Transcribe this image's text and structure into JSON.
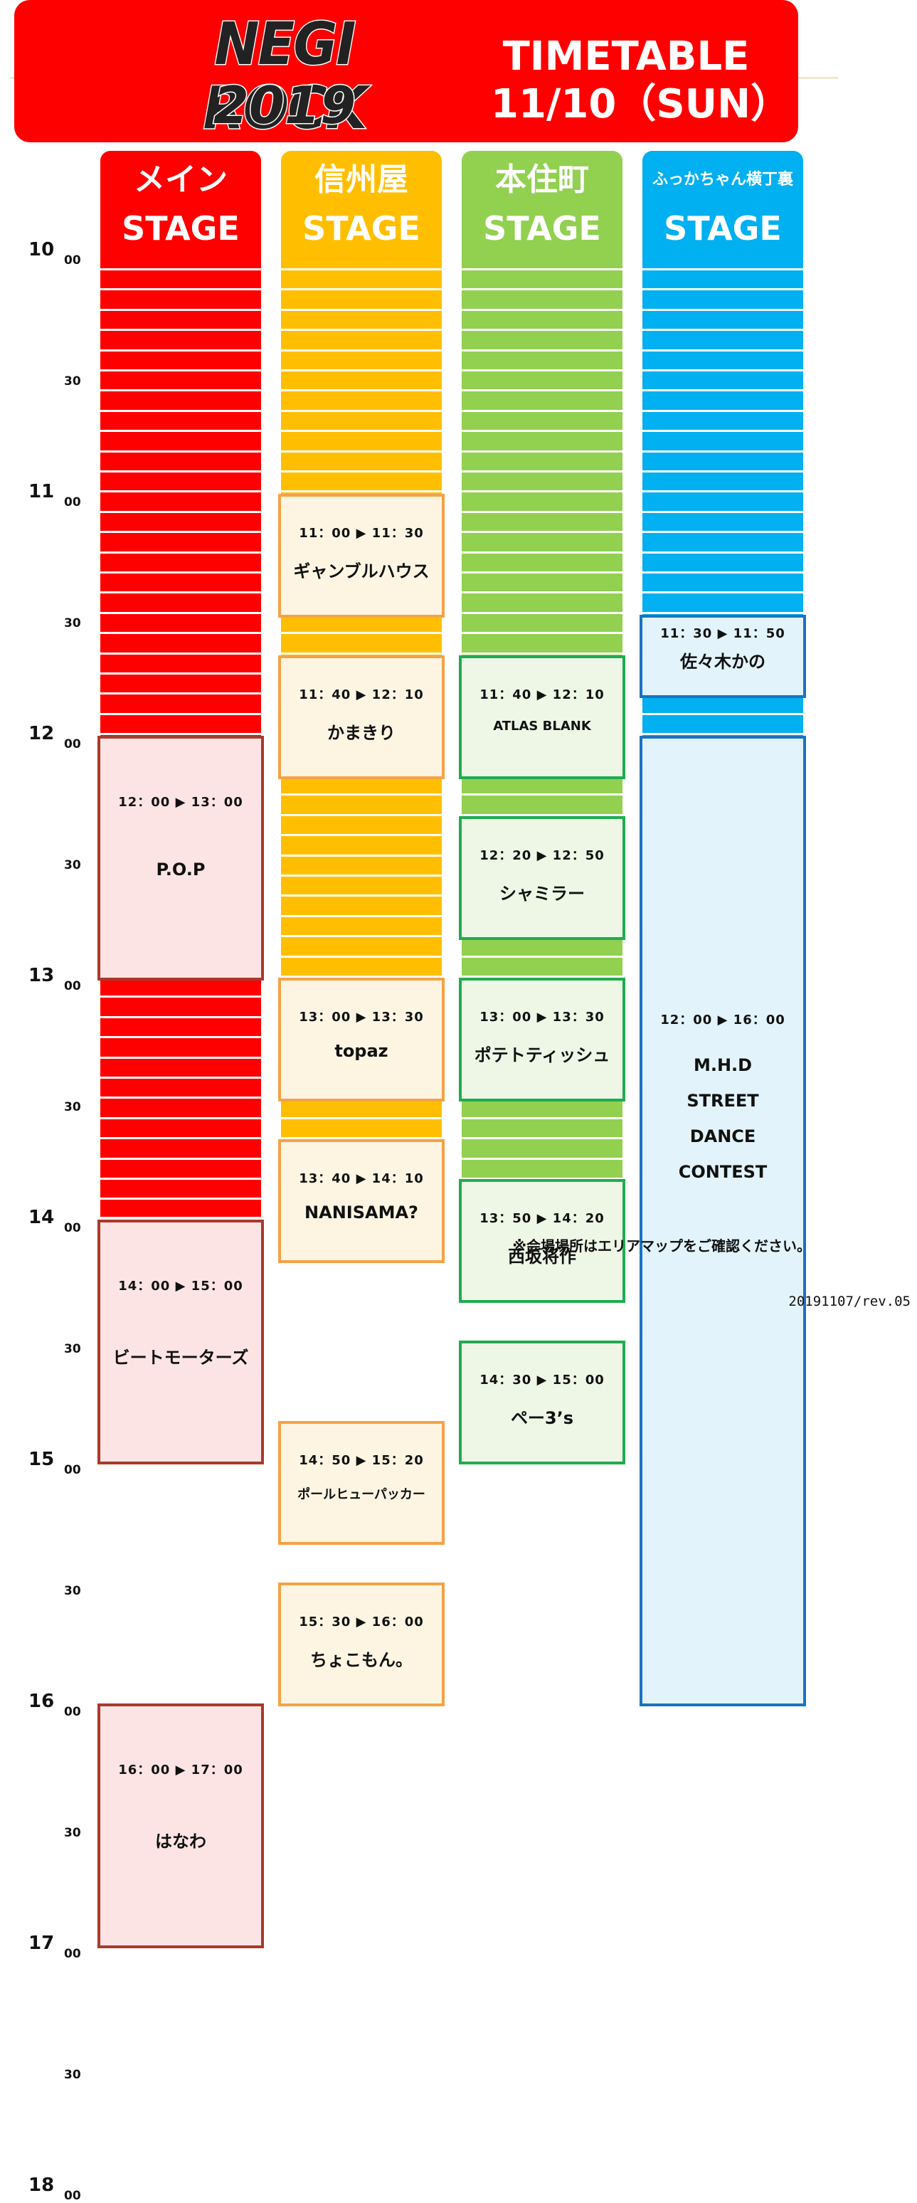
{
  "header": {
    "logo_line1": "NEGI ROCK",
    "logo_line2": "2019",
    "title": "TIMETABLE",
    "date": "11/10（SUN）"
  },
  "stages": [
    {
      "name": "メイン",
      "label": "STAGE",
      "color": "#ff0000",
      "stripe": "#ffffff"
    },
    {
      "name": "信州屋",
      "label": "STAGE",
      "color": "#ffbf00",
      "stripe": "#ffffff"
    },
    {
      "name": "本住町",
      "label": "STAGE",
      "color": "#92d050",
      "stripe": "#ffffff"
    },
    {
      "name": "ふっかちゃん横丁裏",
      "label": "STAGE",
      "color": "#00b0f0",
      "stripe": "#ffffff"
    }
  ],
  "time_labels": [
    {
      "hour": "10",
      "min": "00"
    },
    {
      "hour": "",
      "min": "30"
    },
    {
      "hour": "11",
      "min": "00"
    },
    {
      "hour": "",
      "min": "30"
    },
    {
      "hour": "12",
      "min": "00"
    },
    {
      "hour": "",
      "min": "30"
    },
    {
      "hour": "13",
      "min": "00"
    },
    {
      "hour": "",
      "min": "30"
    },
    {
      "hour": "14",
      "min": "00"
    },
    {
      "hour": "",
      "min": "30"
    },
    {
      "hour": "15",
      "min": "00"
    },
    {
      "hour": "",
      "min": "30"
    },
    {
      "hour": "16",
      "min": "00"
    },
    {
      "hour": "",
      "min": "30"
    },
    {
      "hour": "17",
      "min": "00"
    },
    {
      "hour": "",
      "min": "30"
    },
    {
      "hour": "18",
      "min": "00"
    }
  ],
  "schedule": {
    "main": [
      {
        "time": "12：00 ▶ 13：00",
        "name": "P.O.P",
        "start": "12:00",
        "end": "13:00"
      },
      {
        "time": "14：00 ▶ 15：00",
        "name": "ビートモーターズ",
        "start": "14:00",
        "end": "15:00"
      },
      {
        "time": "16：00 ▶ 17：00",
        "name": "はなわ",
        "start": "16:00",
        "end": "17:00"
      }
    ],
    "shinshuya": [
      {
        "time": "11：00 ▶ 11：30",
        "name": "ギャンブルハウス",
        "start": "11:00",
        "end": "11:30"
      },
      {
        "time": "11：40 ▶ 12：10",
        "name": "かまきり",
        "start": "11:40",
        "end": "12:10"
      },
      {
        "time": "13：00 ▶ 13：30",
        "name": "topaz",
        "start": "13:00",
        "end": "13:30"
      },
      {
        "time": "13：40 ▶ 14：10",
        "name": "NANISAMA?",
        "start": "13:40",
        "end": "14:10"
      },
      {
        "time": "14：50 ▶ 15：20",
        "name": "ポールヒューパッカー",
        "start": "14:50",
        "end": "15:20"
      },
      {
        "time": "15：30 ▶ 16：00",
        "name": "ちょこもん。",
        "start": "15:30",
        "end": "16:00"
      }
    ],
    "honjucho": [
      {
        "time": "11：40 ▶ 12：10",
        "name": "ATLAS BLANK",
        "start": "11:40",
        "end": "12:10"
      },
      {
        "time": "12：20 ▶ 12：50",
        "name": "シャミラー",
        "start": "12:20",
        "end": "12:50"
      },
      {
        "time": "13：00 ▶ 13：30",
        "name": "ポテトティッシュ",
        "start": "13:00",
        "end": "13:30"
      },
      {
        "time": "13：50 ▶ 14：20",
        "name": "西坂将作",
        "start": "13:50",
        "end": "14:20"
      },
      {
        "time": "14：30 ▶ 15：00",
        "name": "ペー3’s",
        "start": "14:30",
        "end": "15:00"
      }
    ],
    "fukkachan": [
      {
        "time": "11：30 ▶ 11：50",
        "name": "佐々木かの",
        "start": "11:30",
        "end": "11:50"
      },
      {
        "time": "12：00 ▶ 16：00",
        "name_lines": [
          "M.H.D",
          "STREET",
          "DANCE",
          "CONTEST"
        ],
        "start": "12:00",
        "end": "16:00"
      }
    ]
  },
  "footer": {
    "note": "※会場場所はエリアマップをご確認ください。",
    "revision": "20191107/rev.05"
  }
}
